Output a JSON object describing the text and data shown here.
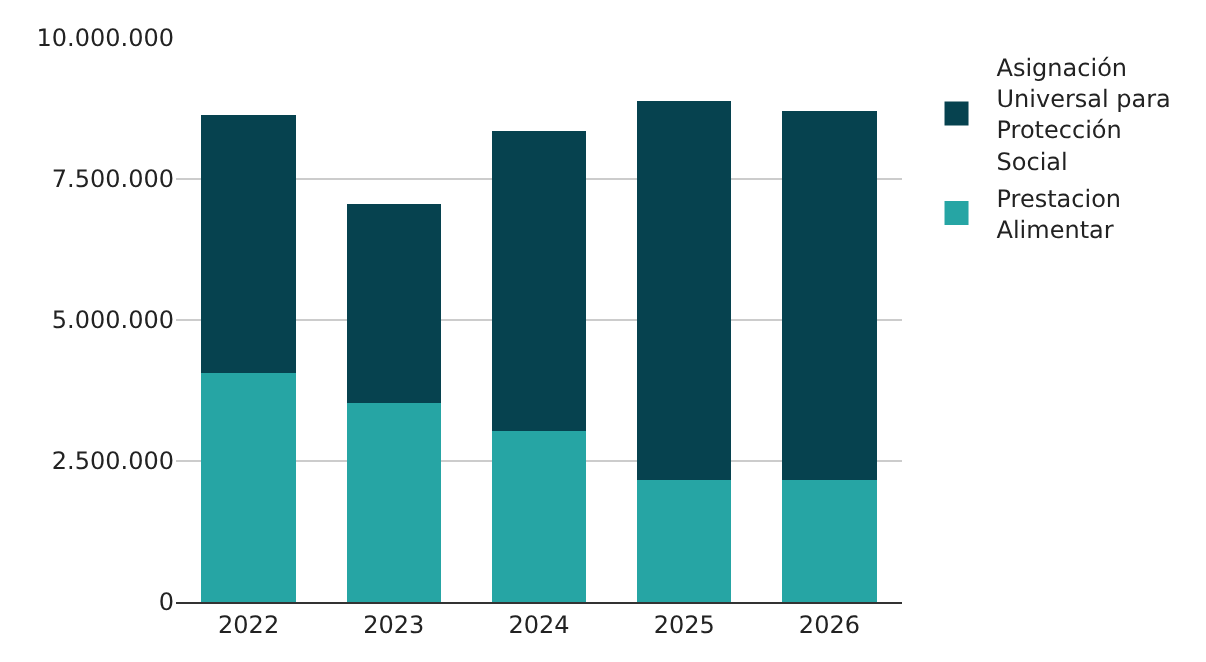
{
  "chart_data": {
    "type": "bar",
    "stacked": true,
    "categories": [
      "2022",
      "2023",
      "2024",
      "2025",
      "2026"
    ],
    "series": [
      {
        "name": "Prestacion Alimentar",
        "color": "#26a5a4",
        "values": [
          4060000,
          3530000,
          3030000,
          2170000,
          2170000
        ]
      },
      {
        "name": "Asignación Universal para Protección Social",
        "color": "#06424f",
        "values": [
          4570000,
          3520000,
          5320000,
          6710000,
          6530000
        ]
      }
    ],
    "ylim": [
      0,
      10000000
    ],
    "yticks": [
      0,
      {
        "value": 2500000,
        "label": "2.500.000"
      },
      {
        "value": 5000000,
        "label": "5.000.000"
      },
      {
        "value": 7500000,
        "label": "7.500.000"
      },
      {
        "value": 10000000,
        "label": "10.000.000"
      }
    ],
    "grid": "y",
    "legend": "top right"
  }
}
